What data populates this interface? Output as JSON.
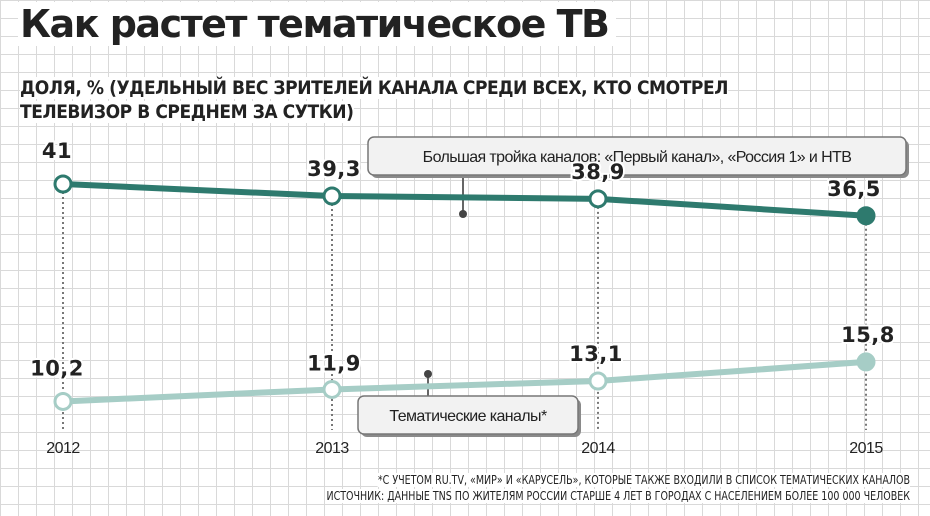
{
  "header": {
    "title": "Как растет тематическое ТВ",
    "subtitle": "ДОЛЯ, % (УДЕЛЬНЫЙ ВЕС ЗРИТЕЛЕЙ КАНАЛА СРЕДИ ВСЕХ, КТО СМОТРЕЛ ТЕЛЕВИЗОР В СРЕДНЕМ ЗА СУТКИ)"
  },
  "footer": {
    "note": "*С УЧЕТОМ RU.TV, «МИР» И «КАРУСЕЛЬ», КОТОРЫЕ ТАКЖЕ ВХОДИЛИ В СПИСОК ТЕМАТИЧЕСКИХ КАНАЛОВ",
    "source": "ИСТОЧНИК: ДАННЫЕ TNS ПО ЖИТЕЛЯМ РОССИИ СТАРШЕ 4 ЛЕТ В ГОРОДАХ С НАСЕЛЕНИЕМ БОЛЕЕ 100 000 ЧЕЛОВЕК"
  },
  "chart_data": {
    "type": "line",
    "title": "Как растет тематическое ТВ",
    "subtitle": "ДОЛЯ, % (УДЕЛЬНЫЙ ВЕС ЗРИТЕЛЕЙ КАНАЛА СРЕДИ ВСЕХ, КТО СМОТРЕЛ ТЕЛЕВИЗОР В СРЕДНЕМ ЗА СУТКИ)",
    "xlabel": "",
    "ylabel": "",
    "categories": [
      "2012",
      "2013",
      "2014",
      "2015"
    ],
    "series": [
      {
        "name": "Большая тройка каналов: «Первый канал», «Россия 1» и НТВ",
        "values": [
          41,
          39.3,
          38.9,
          36.5
        ],
        "labels": [
          "41",
          "39,3",
          "38,9",
          "36,5"
        ],
        "color": "#2e7a6e"
      },
      {
        "name": "Тематические каналы*",
        "values": [
          10.2,
          11.9,
          13.1,
          15.8
        ],
        "labels": [
          "10,2",
          "11,9",
          "13,1",
          "15,8"
        ],
        "color": "#a6cdc6"
      }
    ],
    "grid": true,
    "legend": "callout labels on lines"
  }
}
